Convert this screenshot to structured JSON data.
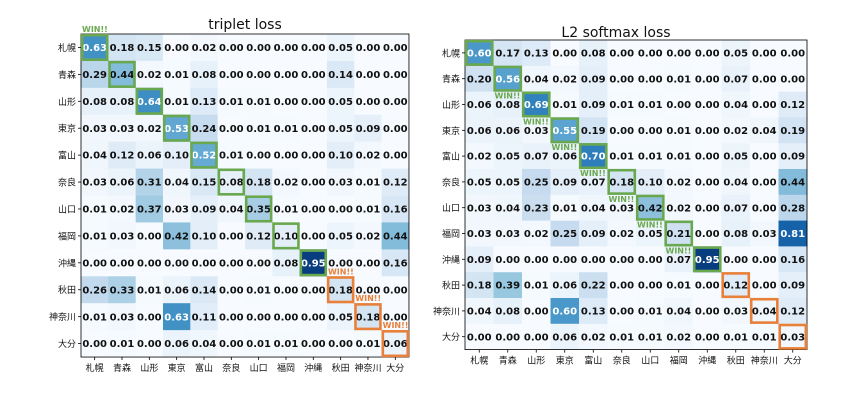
{
  "colors": {
    "win_green": "#6aa84f",
    "lose_orange": "#e8803a",
    "cell_dark_text": "#ffffff",
    "cell_light_text": "#111111",
    "colormap": "Blues"
  },
  "chart_data": [
    {
      "type": "heatmap",
      "title": "triplet loss",
      "x_categories": [
        "札幌",
        "青森",
        "山形",
        "東京",
        "富山",
        "奈良",
        "山口",
        "福岡",
        "沖縄",
        "秋田",
        "神奈川",
        "大分"
      ],
      "y_categories": [
        "札幌",
        "青森",
        "山形",
        "東京",
        "富山",
        "奈良",
        "山口",
        "福岡",
        "沖縄",
        "秋田",
        "神奈川",
        "大分"
      ],
      "values": [
        [
          0.63,
          0.18,
          0.15,
          0.0,
          0.02,
          0.0,
          0.0,
          0.0,
          0.0,
          0.05,
          0.0,
          0.0
        ],
        [
          0.29,
          0.44,
          0.02,
          0.01,
          0.08,
          0.0,
          0.0,
          0.0,
          0.0,
          0.14,
          0.0,
          0.0
        ],
        [
          0.08,
          0.08,
          0.64,
          0.01,
          0.13,
          0.01,
          0.01,
          0.0,
          0.0,
          0.05,
          0.0,
          0.0
        ],
        [
          0.03,
          0.03,
          0.02,
          0.53,
          0.24,
          0.0,
          0.01,
          0.01,
          0.0,
          0.05,
          0.09,
          0.0
        ],
        [
          0.04,
          0.12,
          0.06,
          0.1,
          0.52,
          0.01,
          0.0,
          0.0,
          0.0,
          0.1,
          0.02,
          0.0
        ],
        [
          0.03,
          0.06,
          0.31,
          0.04,
          0.15,
          0.08,
          0.18,
          0.02,
          0.0,
          0.03,
          0.01,
          0.12
        ],
        [
          0.01,
          0.02,
          0.37,
          0.03,
          0.09,
          0.04,
          0.35,
          0.01,
          0.0,
          0.0,
          0.01,
          0.16
        ],
        [
          0.01,
          0.03,
          0.0,
          0.42,
          0.1,
          0.0,
          0.12,
          0.1,
          0.0,
          0.05,
          0.02,
          0.44
        ],
        [
          0.0,
          0.0,
          0.0,
          0.0,
          0.0,
          0.0,
          0.0,
          0.08,
          0.95,
          0.0,
          0.0,
          0.16
        ],
        [
          0.26,
          0.33,
          0.01,
          0.06,
          0.14,
          0.0,
          0.01,
          0.0,
          0.0,
          0.18,
          0.0,
          0.0
        ],
        [
          0.01,
          0.03,
          0.0,
          0.63,
          0.11,
          0.0,
          0.0,
          0.0,
          0.0,
          0.05,
          0.18,
          0.0
        ],
        [
          0.0,
          0.01,
          0.0,
          0.06,
          0.04,
          0.0,
          0.01,
          0.01,
          0.0,
          0.0,
          0.01,
          0.06
        ]
      ],
      "grid": false,
      "green_boxes": [
        0,
        1,
        2,
        3,
        4,
        5,
        6,
        7,
        8
      ],
      "orange_boxes": [
        9,
        10,
        11
      ],
      "win_label": "WIN!!",
      "win_labels_at": [
        0,
        9,
        10,
        11
      ]
    },
    {
      "type": "heatmap",
      "title": "L2 softmax loss",
      "x_categories": [
        "札幌",
        "青森",
        "山形",
        "東京",
        "富山",
        "奈良",
        "山口",
        "福岡",
        "沖縄",
        "秋田",
        "神奈川",
        "大分"
      ],
      "y_categories": [
        "札幌",
        "青森",
        "山形",
        "東京",
        "富山",
        "奈良",
        "山口",
        "福岡",
        "沖縄",
        "秋田",
        "神奈川",
        "大分"
      ],
      "values": [
        [
          0.6,
          0.17,
          0.13,
          0.0,
          0.08,
          0.0,
          0.0,
          0.0,
          0.0,
          0.05,
          0.0,
          0.0
        ],
        [
          0.2,
          0.56,
          0.04,
          0.02,
          0.09,
          0.0,
          0.0,
          0.01,
          0.0,
          0.07,
          0.0,
          0.0
        ],
        [
          0.06,
          0.08,
          0.69,
          0.01,
          0.09,
          0.01,
          0.01,
          0.0,
          0.0,
          0.04,
          0.0,
          0.12
        ],
        [
          0.06,
          0.06,
          0.03,
          0.55,
          0.19,
          0.0,
          0.0,
          0.01,
          0.0,
          0.02,
          0.04,
          0.19
        ],
        [
          0.02,
          0.05,
          0.07,
          0.06,
          0.7,
          0.01,
          0.01,
          0.01,
          0.0,
          0.05,
          0.0,
          0.09
        ],
        [
          0.05,
          0.05,
          0.25,
          0.09,
          0.07,
          0.18,
          0.1,
          0.02,
          0.0,
          0.04,
          0.0,
          0.44
        ],
        [
          0.03,
          0.04,
          0.23,
          0.01,
          0.04,
          0.03,
          0.42,
          0.02,
          0.0,
          0.07,
          0.0,
          0.28
        ],
        [
          0.03,
          0.03,
          0.02,
          0.25,
          0.09,
          0.02,
          0.05,
          0.21,
          0.0,
          0.08,
          0.03,
          0.81
        ],
        [
          0.09,
          0.0,
          0.0,
          0.0,
          0.0,
          0.0,
          0.0,
          0.07,
          0.95,
          0.0,
          0.0,
          0.16
        ],
        [
          0.18,
          0.39,
          0.01,
          0.06,
          0.22,
          0.0,
          0.0,
          0.01,
          0.0,
          0.12,
          0.0,
          0.09
        ],
        [
          0.04,
          0.08,
          0.0,
          0.6,
          0.13,
          0.0,
          0.01,
          0.04,
          0.0,
          0.03,
          0.04,
          0.12
        ],
        [
          0.0,
          0.0,
          0.0,
          0.06,
          0.02,
          0.01,
          0.01,
          0.02,
          0.0,
          0.01,
          0.01,
          0.03
        ]
      ],
      "grid": false,
      "green_boxes": [
        0,
        1,
        2,
        3,
        4,
        5,
        6,
        7,
        8
      ],
      "orange_boxes": [
        9,
        10,
        11
      ],
      "win_label": "WIN!!",
      "win_labels_at": [
        1,
        2,
        3,
        4,
        5,
        6,
        7
      ]
    }
  ]
}
